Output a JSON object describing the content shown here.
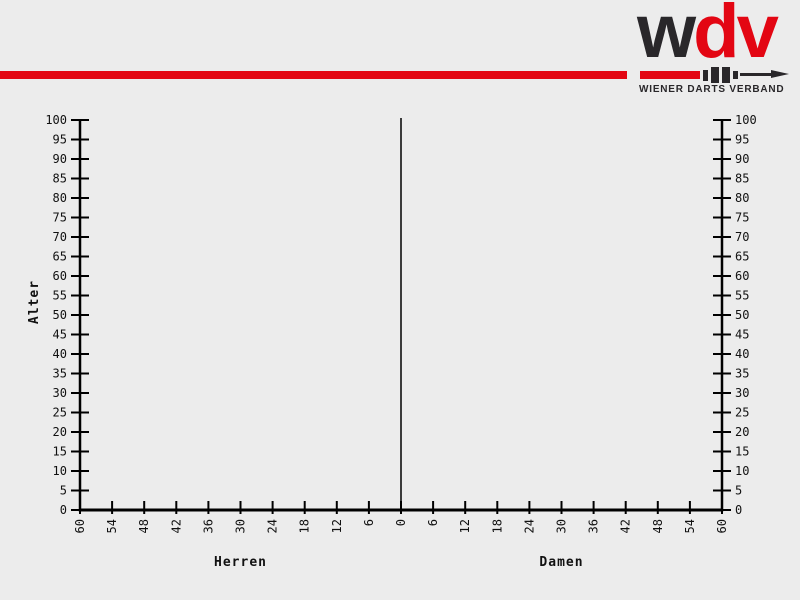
{
  "page": {
    "background_color": "#ececec"
  },
  "header": {
    "red_line_color": "#e30613",
    "logo": {
      "letter_w": "w",
      "letter_d": "d",
      "letter_v": "v",
      "w_color": "#29272a",
      "dv_color": "#e30613",
      "dart_color_red": "#e30613",
      "dart_color_black": "#29272a",
      "subtitle": "WIENER DARTS VERBAND"
    }
  },
  "chart_data": {
    "type": "bar",
    "subtype": "population-pyramid",
    "title": "",
    "ylabel": "Alter",
    "xlabel": "",
    "ylim": [
      0,
      100
    ],
    "y_tick_step": 5,
    "y_ticks": [
      0,
      5,
      10,
      15,
      20,
      25,
      30,
      35,
      40,
      45,
      50,
      55,
      60,
      65,
      70,
      75,
      80,
      85,
      90,
      95,
      100
    ],
    "x_axis_max_each_side": 60,
    "x_tick_step": 6,
    "x_tick_labels": [
      "60",
      "54",
      "48",
      "42",
      "36",
      "30",
      "24",
      "18",
      "12",
      "6",
      "0",
      "6",
      "12",
      "18",
      "24",
      "30",
      "36",
      "42",
      "48",
      "54",
      "60"
    ],
    "groups": [
      {
        "name": "Herren",
        "side": "left",
        "values": []
      },
      {
        "name": "Damen",
        "side": "right",
        "values": []
      }
    ],
    "grid": false,
    "legend": "none",
    "axis_color": "#000000",
    "label_color": "#111111"
  }
}
